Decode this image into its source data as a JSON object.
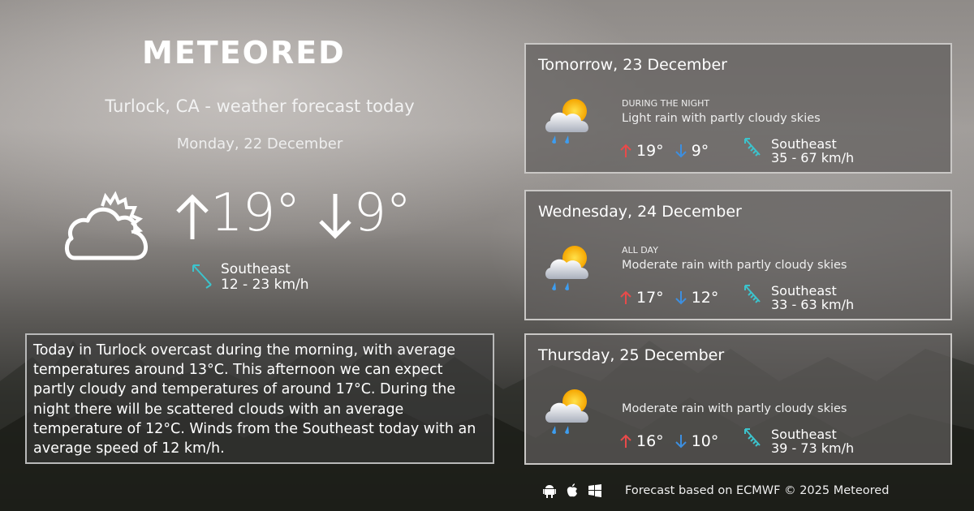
{
  "brand": {
    "logo": "METEORED"
  },
  "header": {
    "title": "Turlock, CA - weather forecast today",
    "date": "Monday, 22 December"
  },
  "today": {
    "icon": "partly-cloudy-outline-icon",
    "high": "19°",
    "low": "9°",
    "wind_dir": "Southeast",
    "wind_speed": "12 - 23 km/h",
    "description": "Today in Turlock overcast during the morning, with average temperatures around 13°C. This afternoon we can expect partly cloudy and temperatures of around 17°C. During the night there will be scattered clouds with an average temperature of 12°C. Winds from the Southeast today with an average speed of 12 km/h."
  },
  "days": [
    {
      "day": "Tomorrow, 23 December",
      "period": "DURING THE NIGHT",
      "condition": "Light rain with partly cloudy skies",
      "icon": "rain-partly-cloudy-icon",
      "high": "19°",
      "low": "9°",
      "wind_dir": "Southeast",
      "wind_speed": "35 - 67 km/h"
    },
    {
      "day": "Wednesday, 24 December",
      "period": "ALL DAY",
      "condition": "Moderate rain with partly cloudy skies",
      "icon": "rain-partly-cloudy-icon",
      "high": "17°",
      "low": "12°",
      "wind_dir": "Southeast",
      "wind_speed": "33 - 63 km/h"
    },
    {
      "day": "Thursday, 25 December",
      "period": "",
      "condition": "Moderate rain with partly cloudy skies",
      "icon": "rain-partly-cloudy-icon",
      "high": "16°",
      "low": "10°",
      "wind_dir": "Southeast",
      "wind_speed": "39 - 73 km/h"
    }
  ],
  "footer": {
    "text": "Forecast based on ECMWF © 2025 Meteored",
    "icons": [
      "android-icon",
      "apple-icon",
      "windows-icon"
    ]
  },
  "colors": {
    "high": "#e84a4a",
    "low": "#3d8fe0",
    "wind": "#3cc3cc"
  }
}
